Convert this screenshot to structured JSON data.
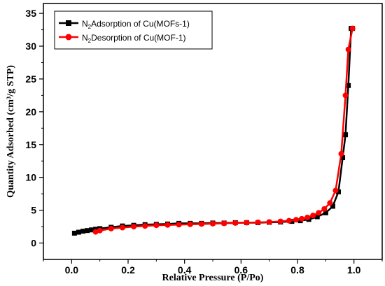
{
  "chart_data": {
    "type": "line",
    "xlabel": "Relative Pressure (P/Po)",
    "ylabel": "Quantity Adsorbed (cm³/g STP)",
    "xlim": [
      -0.1,
      1.1
    ],
    "ylim": [
      -2.5,
      36.5
    ],
    "x_ticks": [
      0.0,
      0.2,
      0.4,
      0.6,
      0.8,
      1.0
    ],
    "x_tick_labels": [
      "0.0",
      "0.2",
      "0.4",
      "0.6",
      "0.8",
      "1.0"
    ],
    "y_ticks": [
      0,
      5,
      10,
      15,
      20,
      25,
      30,
      35
    ],
    "y_tick_labels": [
      "0",
      "5",
      "10",
      "15",
      "20",
      "25",
      "30",
      "35"
    ],
    "grid": false,
    "legend_position": "top-left",
    "series": [
      {
        "name_main": "N",
        "name_sub": "2",
        "name_rest": "Adsorption of Cu(MOFs-1)",
        "color": "#000000",
        "marker": "square",
        "x": [
          0.01,
          0.025,
          0.04,
          0.055,
          0.07,
          0.085,
          0.1,
          0.14,
          0.18,
          0.22,
          0.26,
          0.3,
          0.34,
          0.38,
          0.42,
          0.46,
          0.5,
          0.54,
          0.58,
          0.62,
          0.66,
          0.7,
          0.74,
          0.78,
          0.81,
          0.84,
          0.87,
          0.9,
          0.925,
          0.945,
          0.96,
          0.97,
          0.98,
          0.99,
          0.995
        ],
        "y": [
          1.5,
          1.65,
          1.8,
          1.9,
          2.0,
          2.1,
          2.2,
          2.4,
          2.6,
          2.7,
          2.8,
          2.85,
          2.9,
          3.0,
          3.0,
          3.0,
          3.05,
          3.05,
          3.1,
          3.1,
          3.1,
          3.15,
          3.2,
          3.3,
          3.4,
          3.6,
          4.0,
          4.6,
          5.6,
          7.8,
          13.0,
          16.5,
          24.0,
          32.7,
          32.7
        ]
      },
      {
        "name_main": "N",
        "name_sub": "2",
        "name_rest": "Desorption of Cu(MOF-1)",
        "color": "#ff0000",
        "marker": "circle",
        "x": [
          0.995,
          0.98,
          0.97,
          0.955,
          0.935,
          0.915,
          0.895,
          0.875,
          0.855,
          0.835,
          0.815,
          0.795,
          0.77,
          0.74,
          0.7,
          0.66,
          0.62,
          0.58,
          0.54,
          0.5,
          0.46,
          0.42,
          0.38,
          0.34,
          0.3,
          0.26,
          0.22,
          0.18,
          0.14,
          0.1,
          0.085
        ],
        "y": [
          32.7,
          29.5,
          22.5,
          13.6,
          8.0,
          6.1,
          5.2,
          4.6,
          4.2,
          3.9,
          3.7,
          3.55,
          3.4,
          3.3,
          3.2,
          3.15,
          3.1,
          3.05,
          3.0,
          2.95,
          2.9,
          2.85,
          2.8,
          2.75,
          2.7,
          2.6,
          2.5,
          2.35,
          2.2,
          1.9,
          1.7
        ]
      }
    ]
  }
}
